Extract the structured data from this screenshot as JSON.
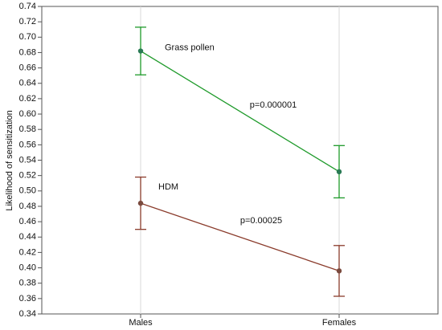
{
  "chart_data": {
    "type": "line",
    "y_label": "Likelihood of sensitization",
    "categories": [
      "Males",
      "Females"
    ],
    "series": [
      {
        "name": "Grass pollen",
        "color": "#1e9a2a",
        "marker_color": "#2a7a55",
        "values": [
          0.682,
          0.525
        ],
        "errors": [
          0.031,
          0.034
        ]
      },
      {
        "name": "HDM",
        "color": "#8a3b2b",
        "marker_color": "#7a4a3e",
        "values": [
          0.484,
          0.396
        ],
        "errors": [
          0.034,
          0.033
        ]
      }
    ],
    "annotations": [
      "p=0.000001",
      "p=0.00025"
    ],
    "ylim": [
      0.34,
      0.74
    ],
    "yticks": [
      0.34,
      0.36,
      0.38,
      {
        "value": 0.4,
        "label": "0.40"
      },
      0.42,
      0.44,
      0.46,
      0.48,
      {
        "value": 0.5,
        "label": "0.50"
      },
      0.52,
      0.54,
      0.56,
      0.58,
      {
        "value": 0.6,
        "label": "0.60"
      },
      0.62,
      0.64,
      0.66,
      0.68,
      {
        "value": 0.7,
        "label": "0.70"
      },
      0.72,
      0.74
    ]
  }
}
